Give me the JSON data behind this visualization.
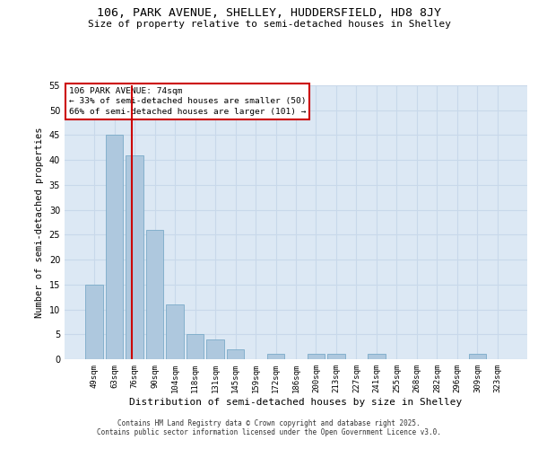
{
  "title1": "106, PARK AVENUE, SHELLEY, HUDDERSFIELD, HD8 8JY",
  "title2": "Size of property relative to semi-detached houses in Shelley",
  "xlabel": "Distribution of semi-detached houses by size in Shelley",
  "ylabel": "Number of semi-detached properties",
  "categories": [
    "49sqm",
    "63sqm",
    "76sqm",
    "90sqm",
    "104sqm",
    "118sqm",
    "131sqm",
    "145sqm",
    "159sqm",
    "172sqm",
    "186sqm",
    "200sqm",
    "213sqm",
    "227sqm",
    "241sqm",
    "255sqm",
    "268sqm",
    "282sqm",
    "296sqm",
    "309sqm",
    "323sqm"
  ],
  "values": [
    15,
    45,
    41,
    26,
    11,
    5,
    4,
    2,
    0,
    1,
    0,
    1,
    1,
    0,
    1,
    0,
    0,
    0,
    0,
    1,
    0
  ],
  "bar_color": "#aec8de",
  "bar_edge_color": "#7aaac8",
  "grid_color": "#c8d8ea",
  "bg_color": "#dce8f4",
  "vline_color": "#cc0000",
  "vline_x": 1.85,
  "annotation_title": "106 PARK AVENUE: 74sqm",
  "annotation_line1": "← 33% of semi-detached houses are smaller (50)",
  "annotation_line2": "66% of semi-detached houses are larger (101) →",
  "annotation_edge_color": "#cc0000",
  "footer1": "Contains HM Land Registry data © Crown copyright and database right 2025.",
  "footer2": "Contains public sector information licensed under the Open Government Licence v3.0.",
  "ylim_max": 55,
  "yticks": [
    0,
    5,
    10,
    15,
    20,
    25,
    30,
    35,
    40,
    45,
    50,
    55
  ]
}
